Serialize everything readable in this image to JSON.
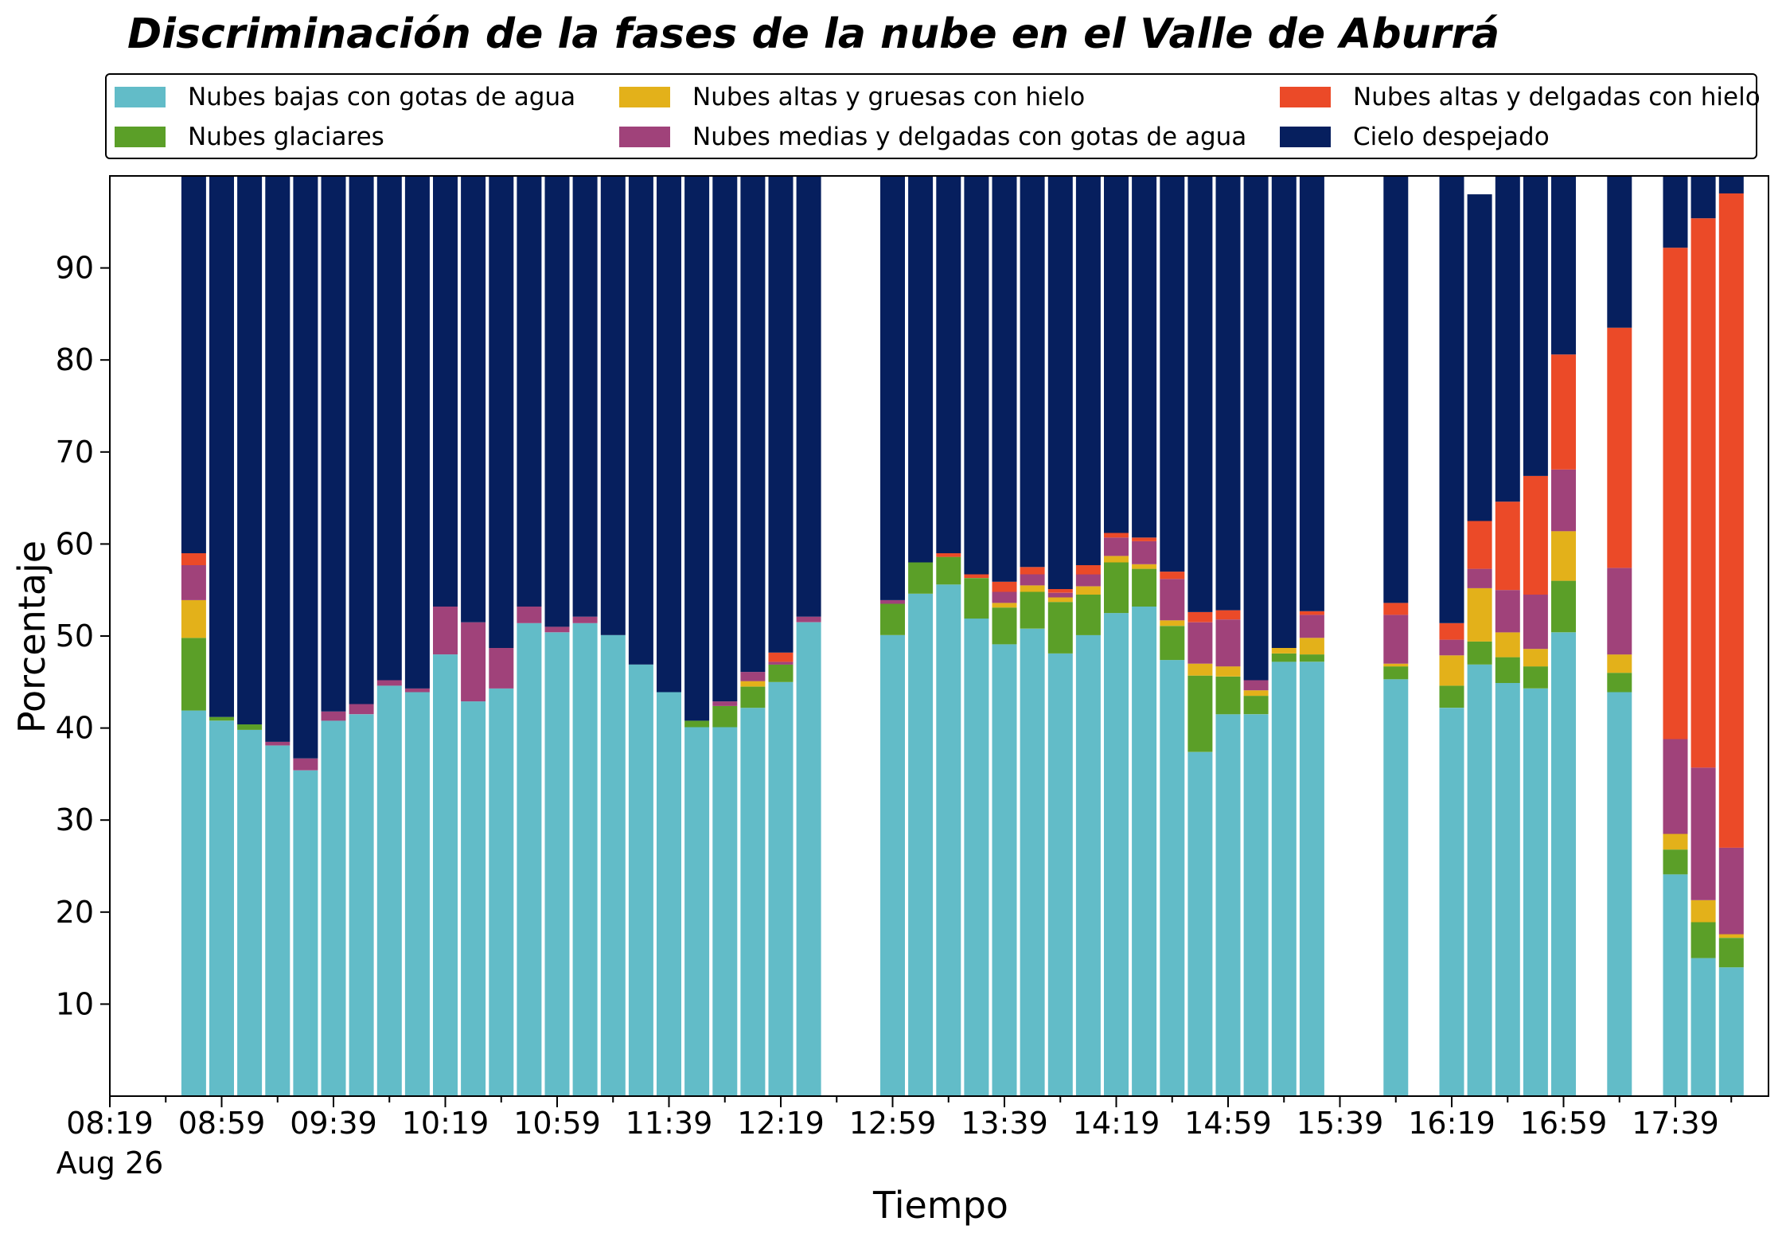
{
  "chart_data": {
    "type": "bar",
    "stacked": true,
    "title": "Discriminación de la fases de la nube en el Valle de Aburrá",
    "xlabel": "Tiempo",
    "ylabel": "Porcentaje",
    "ylim": [
      0,
      100
    ],
    "yticks": [
      10,
      20,
      30,
      40,
      50,
      60,
      70,
      80,
      90
    ],
    "xticks": [
      "08:19",
      "08:59",
      "09:39",
      "10:19",
      "10:59",
      "11:39",
      "12:19",
      "12:59",
      "13:39",
      "14:19",
      "14:59",
      "15:39",
      "16:19",
      "16:59",
      "17:39"
    ],
    "xtick_sublabel": "Aug 26",
    "bar_interval_minutes": 10,
    "grid": false,
    "legend_position": "top",
    "x": [
      "08:49",
      "08:59",
      "09:09",
      "09:19",
      "09:29",
      "09:39",
      "09:49",
      "09:59",
      "10:09",
      "10:19",
      "10:29",
      "10:39",
      "10:49",
      "10:59",
      "11:09",
      "11:19",
      "11:29",
      "11:39",
      "11:49",
      "11:59",
      "12:09",
      "12:19",
      "12:29",
      "12:59",
      "13:09",
      "13:19",
      "13:29",
      "13:39",
      "13:49",
      "13:59",
      "14:09",
      "14:19",
      "14:29",
      "14:39",
      "14:49",
      "14:59",
      "15:09",
      "15:19",
      "15:29",
      "15:59",
      "16:19",
      "16:29",
      "16:39",
      "16:49",
      "16:59",
      "17:19",
      "17:39",
      "17:49",
      "17:59"
    ],
    "series": [
      {
        "name": "Nubes bajas con gotas de agua",
        "color": "#62bcc8",
        "values": [
          41.9,
          40.8,
          39.8,
          38.1,
          35.4,
          40.8,
          41.5,
          44.6,
          43.9,
          48.0,
          42.9,
          44.3,
          51.4,
          50.4,
          51.4,
          50.1,
          46.9,
          43.9,
          40.1,
          40.1,
          42.2,
          45.0,
          51.5,
          50.1,
          54.6,
          55.6,
          51.9,
          49.1,
          50.8,
          48.1,
          50.1,
          52.5,
          53.2,
          47.4,
          37.4,
          41.5,
          41.5,
          47.2,
          47.2,
          45.3,
          42.2,
          46.9,
          44.9,
          44.3,
          50.4,
          43.9,
          24.1,
          15.0,
          14.0
        ]
      },
      {
        "name": "Nubes glaciares",
        "color": "#5b9f28",
        "values": [
          7.9,
          0.4,
          0.6,
          0,
          0,
          0,
          0,
          0,
          0,
          0,
          0,
          0,
          0,
          0,
          0,
          0,
          0,
          0,
          0.7,
          2.3,
          2.3,
          1.9,
          0,
          3.4,
          3.4,
          3.0,
          4.4,
          4.0,
          4.0,
          5.6,
          4.4,
          5.5,
          4.1,
          3.7,
          8.3,
          4.1,
          2.0,
          0.9,
          0.8,
          1.4,
          2.4,
          2.5,
          2.8,
          2.4,
          5.6,
          2.1,
          2.7,
          3.9,
          3.2
        ]
      },
      {
        "name": "Nubes altas y gruesas con hielo",
        "color": "#e3b11a",
        "values": [
          4.1,
          0,
          0,
          0,
          0,
          0,
          0,
          0,
          0,
          0,
          0,
          0,
          0,
          0,
          0,
          0,
          0,
          0,
          0,
          0,
          0.6,
          0,
          0,
          0,
          0,
          0,
          0,
          0.5,
          0.7,
          0.5,
          0.9,
          0.7,
          0.5,
          0.6,
          1.3,
          1.1,
          0.6,
          0.6,
          1.8,
          0.3,
          3.3,
          5.8,
          2.7,
          1.9,
          5.4,
          2.0,
          1.7,
          2.4,
          0.4
        ]
      },
      {
        "name": "Nubes medias y delgadas con gotas de agua",
        "color": "#a0427a",
        "values": [
          3.8,
          0,
          0,
          0.4,
          1.3,
          1.0,
          1.1,
          0.6,
          0.4,
          5.2,
          8.6,
          4.4,
          1.8,
          0.6,
          0.7,
          0,
          0,
          0,
          0,
          0.5,
          1.0,
          0.3,
          0.6,
          0.4,
          0,
          0,
          0,
          1.2,
          1.2,
          0.5,
          1.3,
          2.0,
          2.5,
          4.5,
          4.5,
          5.1,
          1.1,
          0,
          2.5,
          5.3,
          1.7,
          2.1,
          4.6,
          5.9,
          6.7,
          9.4,
          10.3,
          14.4,
          9.4
        ]
      },
      {
        "name": "Nubes altas y delgadas con hielo",
        "color": "#eb4a28",
        "values": [
          1.3,
          0,
          0,
          0,
          0,
          0,
          0,
          0,
          0,
          0,
          0,
          0,
          0,
          0,
          0,
          0,
          0,
          0,
          0,
          0,
          0,
          1.0,
          0,
          0,
          0,
          0.4,
          0.4,
          1.1,
          0.8,
          0.4,
          1.0,
          0.5,
          0.4,
          0.8,
          1.1,
          1.0,
          0,
          0,
          0.4,
          1.3,
          1.8,
          5.2,
          9.6,
          12.9,
          12.5,
          26.1,
          53.4,
          59.7,
          71.1
        ]
      },
      {
        "name": "Cielo despejado",
        "color": "#061f5e",
        "values": [
          41.0,
          58.8,
          59.6,
          61.5,
          63.3,
          58.2,
          57.4,
          54.8,
          55.7,
          46.8,
          48.5,
          51.3,
          46.8,
          49.0,
          47.9,
          49.9,
          53.1,
          56.1,
          59.2,
          57.1,
          53.9,
          51.8,
          47.9,
          46.1,
          42.0,
          41.0,
          43.3,
          44.1,
          42.5,
          44.9,
          42.3,
          38.8,
          39.3,
          43.0,
          47.4,
          47.2,
          54.8,
          51.3,
          47.3,
          46.4,
          48.6,
          35.5,
          35.4,
          32.6,
          19.4,
          16.5,
          7.8,
          4.6,
          1.9
        ]
      }
    ]
  }
}
